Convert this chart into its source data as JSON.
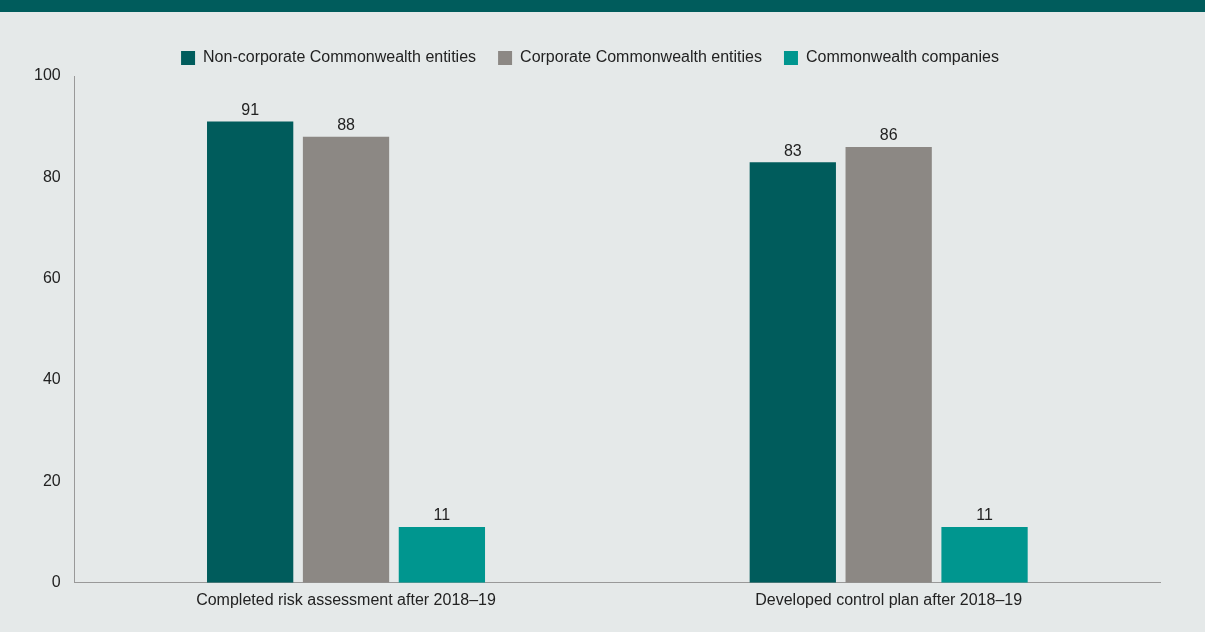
{
  "chart_data": {
    "type": "bar",
    "categories": [
      "Completed risk assessment after 2018–19",
      "Developed control plan after 2018–19"
    ],
    "series": [
      {
        "name": "Non-corporate Commonwealth entities",
        "color": "#005c5c",
        "values": [
          91,
          83
        ]
      },
      {
        "name": "Corporate Commonwealth entities",
        "color": "#8c8884",
        "values": [
          88,
          86
        ]
      },
      {
        "name": "Commonwealth companies",
        "color": "#00968f",
        "values": [
          11,
          11
        ]
      }
    ],
    "ylim": [
      0,
      100
    ],
    "yticks": [
      0,
      20,
      40,
      60,
      80,
      100
    ],
    "grid": false,
    "legend": "top",
    "data_labels": true
  }
}
